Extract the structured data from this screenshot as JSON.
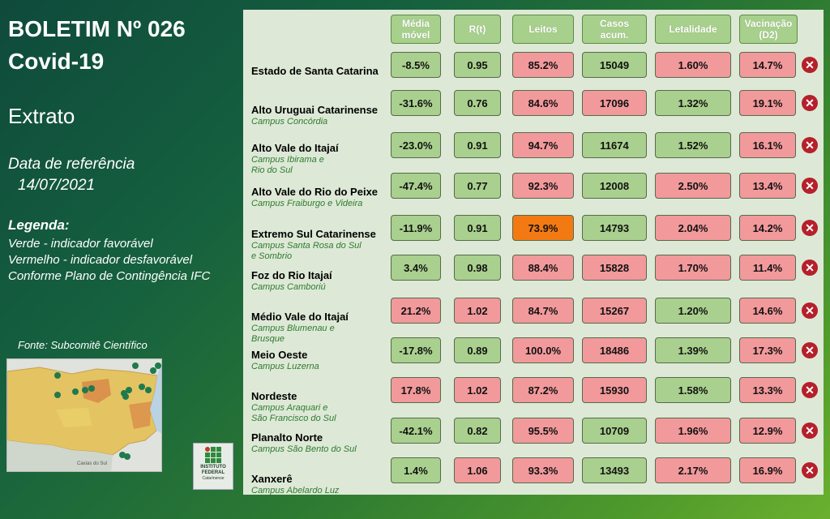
{
  "header": {
    "title_line1": "BOLETIM Nº 026",
    "title_line2": "Covid-19",
    "subtitle": "Extrato",
    "ref_label": "Data de referência",
    "ref_date": "14/07/2021",
    "legend_title": "Legenda:",
    "legend_green": "Verde - indicador favorável",
    "legend_red": "Vermelho - indicador desfavorável",
    "legend_plan": "Conforme Plano de Contingência IFC",
    "source": "Fonte: Subcomitê Científico"
  },
  "logo": {
    "line1": "INSTITUTO",
    "line2": "FEDERAL",
    "line3": "Catarinense"
  },
  "map": {
    "label": "Caxias do Sul"
  },
  "columns": [
    {
      "l1": "Média",
      "l2": "móvel"
    },
    {
      "l1": "R(t)",
      "l2": ""
    },
    {
      "l1": "Leitos",
      "l2": ""
    },
    {
      "l1": "Casos",
      "l2": "acum."
    },
    {
      "l1": "Letalidade",
      "l2": ""
    },
    {
      "l1": "Vacinação",
      "l2": "(D2)"
    }
  ],
  "colors": {
    "green": "#a9d08e",
    "red": "#f2999b",
    "orange": "#f37a12"
  },
  "rows": [
    {
      "name": "Estado de Santa Catarina",
      "sub1": "",
      "sub2": "",
      "v": [
        "-8.5%",
        "0.95",
        "85.2%",
        "15049",
        "1.60%",
        "14.7%"
      ],
      "c": [
        "g",
        "g",
        "r",
        "g",
        "r",
        "r"
      ]
    },
    {
      "name": "Alto Uruguai Catarinense",
      "sub1": "Campus Concórdia",
      "sub2": "",
      "v": [
        "-31.6%",
        "0.76",
        "84.6%",
        "17096",
        "1.32%",
        "19.1%"
      ],
      "c": [
        "g",
        "g",
        "r",
        "r",
        "g",
        "r"
      ]
    },
    {
      "name": "Alto Vale do Itajaí",
      "sub1": "Campus Ibirama e",
      "sub2": "Rio do Sul",
      "v": [
        "-23.0%",
        "0.91",
        "94.7%",
        "11674",
        "1.52%",
        "16.1%"
      ],
      "c": [
        "g",
        "g",
        "r",
        "g",
        "g",
        "r"
      ]
    },
    {
      "name": "Alto Vale do Rio do Peixe",
      "sub1": "Campus Fraiburgo e Videira",
      "sub2": "",
      "v": [
        "-47.4%",
        "0.77",
        "92.3%",
        "12008",
        "2.50%",
        "13.4%"
      ],
      "c": [
        "g",
        "g",
        "r",
        "g",
        "r",
        "r"
      ]
    },
    {
      "name": "Extremo Sul Catarinense",
      "sub1": "Campus Santa Rosa do Sul",
      "sub2": "e Sombrio",
      "v": [
        "-11.9%",
        "0.91",
        "73.9%",
        "14793",
        "2.04%",
        "14.2%"
      ],
      "c": [
        "g",
        "g",
        "o",
        "g",
        "r",
        "r"
      ]
    },
    {
      "name": "Foz do Rio Itajaí",
      "sub1": "Campus Camboriú",
      "sub2": "",
      "v": [
        "3.4%",
        "0.98",
        "88.4%",
        "15828",
        "1.70%",
        "11.4%"
      ],
      "c": [
        "g",
        "g",
        "r",
        "r",
        "r",
        "r"
      ]
    },
    {
      "name": "Médio Vale do Itajaí",
      "sub1": "Campus Blumenau e",
      "sub2": " Brusque",
      "v": [
        "21.2%",
        "1.02",
        "84.7%",
        "15267",
        "1.20%",
        "14.6%"
      ],
      "c": [
        "r",
        "r",
        "r",
        "r",
        "g",
        "r"
      ]
    },
    {
      "name": "Meio Oeste",
      "sub1": "Campus Luzerna",
      "sub2": "",
      "v": [
        "-17.8%",
        "0.89",
        "100.0%",
        "18486",
        "1.39%",
        "17.3%"
      ],
      "c": [
        "g",
        "g",
        "r",
        "r",
        "g",
        "r"
      ]
    },
    {
      "name": "Nordeste",
      "sub1": "Campus Araquari e",
      "sub2": "São Francisco do Sul",
      "v": [
        "17.8%",
        "1.02",
        "87.2%",
        "15930",
        "1.58%",
        "13.3%"
      ],
      "c": [
        "r",
        "r",
        "r",
        "r",
        "g",
        "r"
      ]
    },
    {
      "name": "Planalto Norte",
      "sub1": "Campus São Bento do Sul",
      "sub2": "",
      "v": [
        "-42.1%",
        "0.82",
        "95.5%",
        "10709",
        "1.96%",
        "12.9%"
      ],
      "c": [
        "g",
        "g",
        "r",
        "g",
        "r",
        "r"
      ]
    },
    {
      "name": "Xanxerê",
      "sub1": "Campus Abelardo Luz",
      "sub2": "",
      "v": [
        "1.4%",
        "1.06",
        "93.3%",
        "13493",
        "2.17%",
        "16.9%"
      ],
      "c": [
        "g",
        "r",
        "r",
        "g",
        "r",
        "r"
      ]
    }
  ]
}
